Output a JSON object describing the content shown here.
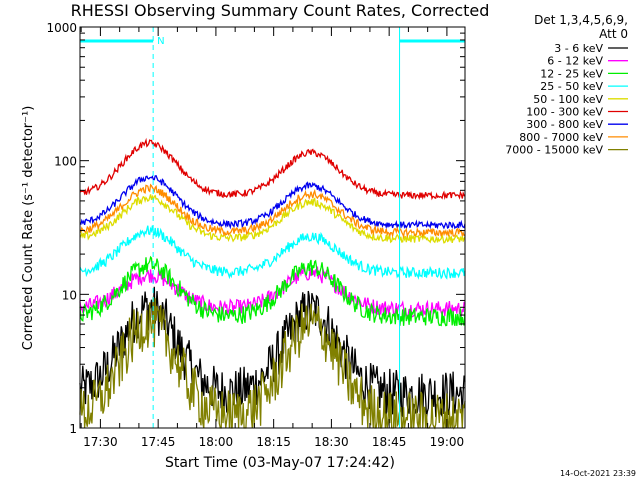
{
  "chart_data": {
    "type": "line",
    "title": "RHESSI Observing Summary Count Rates, Corrected",
    "xlabel": "Start Time (03-May-07 17:24:42)",
    "ylabel": "Corrected Count Rate (s⁻¹ detector⁻¹)",
    "yscale": "log",
    "ylim": [
      1,
      1000
    ],
    "xlim_minutes_after_1724": [
      0,
      100
    ],
    "x_tick_labels": [
      "17:30",
      "17:45",
      "18:00",
      "18:15",
      "18:30",
      "18:45",
      "19:00"
    ],
    "y_tick_labels": [
      "1",
      "10",
      "100",
      "1000"
    ],
    "legend_header": [
      "Det 1,3,4,5,6,9,",
      "Att 0"
    ],
    "legend_position": "right",
    "timestamp": "14-Oct-2021 23:39",
    "night_marker_label": "N",
    "series": [
      {
        "name": "3 - 6 keV",
        "color": "#000000",
        "peaks": [
          8.0,
          7.6
        ],
        "base": 1.8,
        "noise": 0.18
      },
      {
        "name": "6 - 12 keV",
        "color": "#ff00ff",
        "peaks": [
          14.0,
          14.5
        ],
        "base": 7.8,
        "noise": 0.06
      },
      {
        "name": "12 - 25 keV",
        "color": "#00ee00",
        "peaks": [
          16.5,
          16.0
        ],
        "base": 6.8,
        "noise": 0.07
      },
      {
        "name": "25 - 50 keV",
        "color": "#00ffff",
        "peaks": [
          30.0,
          27.0
        ],
        "base": 14.5,
        "noise": 0.04
      },
      {
        "name": "50 - 100 keV",
        "color": "#dddd00",
        "peaks": [
          53.0,
          49.0
        ],
        "base": 26.0,
        "noise": 0.03
      },
      {
        "name": "100 - 300 keV",
        "color": "#e00000",
        "peaks": [
          135.0,
          115.0
        ],
        "base": 55.0,
        "noise": 0.025
      },
      {
        "name": "300 - 800 keV",
        "color": "#0000ee",
        "peaks": [
          75.0,
          65.0
        ],
        "base": 33.0,
        "noise": 0.025
      },
      {
        "name": "800 - 7000 keV",
        "color": "#ff8c00",
        "peaks": [
          62.0,
          56.0
        ],
        "base": 29.0,
        "noise": 0.03
      },
      {
        "name": "7000 - 15000 keV",
        "color": "#808000",
        "peaks": [
          6.2,
          6.0
        ],
        "base": 1.2,
        "noise": 0.2
      }
    ],
    "peak_times_minutes": [
      18,
      60
    ],
    "night_intervals_minutes": [
      [
        0,
        19
      ],
      [
        83,
        100
      ]
    ]
  },
  "colors": {
    "axis": "#000000",
    "marker": "#00ffff"
  }
}
